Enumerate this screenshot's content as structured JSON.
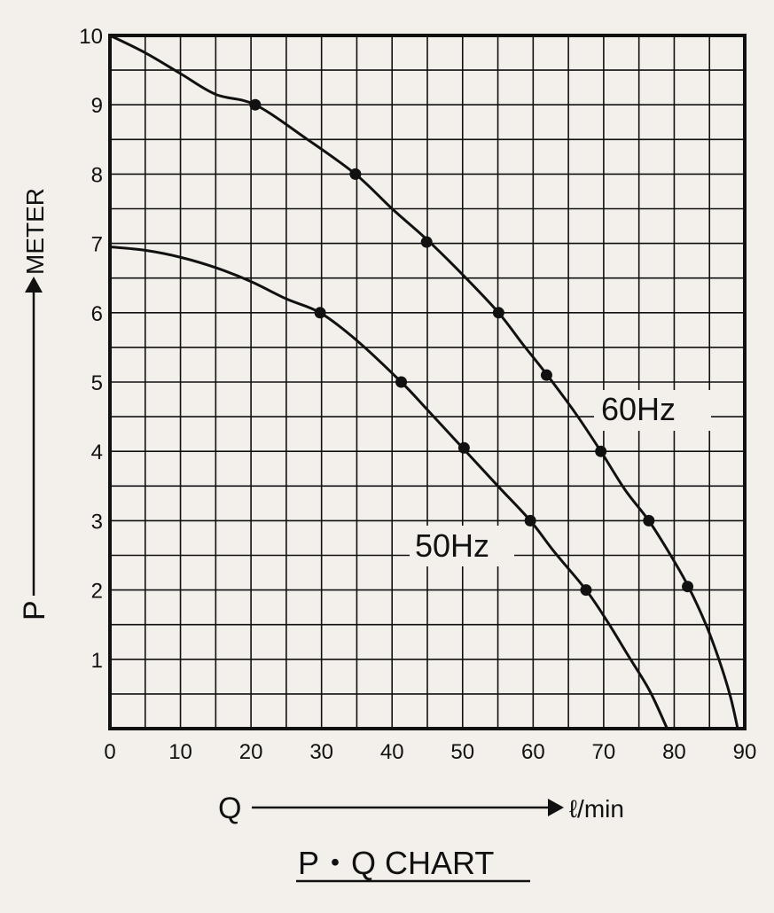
{
  "chart_data": {
    "type": "line",
    "title": "P・Q  CHART",
    "xlabel": "Q",
    "x_unit": "ℓ/min",
    "ylabel": "P",
    "y_unit": "METER",
    "xlim": [
      0,
      90
    ],
    "ylim": [
      0,
      10
    ],
    "x_ticks": [
      "0",
      "10",
      "20",
      "30",
      "40",
      "50",
      "60",
      "70",
      "80",
      "90"
    ],
    "y_ticks": [
      "1",
      "2",
      "3",
      "4",
      "5",
      "6",
      "7",
      "8",
      "9",
      "10"
    ],
    "grid": true,
    "series": [
      {
        "name": "60Hz",
        "curve": [
          [
            0,
            10
          ],
          [
            5,
            9.75
          ],
          [
            10,
            9.45
          ],
          [
            15,
            9.15
          ],
          [
            20.6,
            9.0
          ],
          [
            28,
            8.5
          ],
          [
            34.8,
            8.0
          ],
          [
            40,
            7.5
          ],
          [
            45,
            7.05
          ],
          [
            50,
            6.55
          ],
          [
            55.1,
            6.0
          ],
          [
            58.5,
            5.55
          ],
          [
            62,
            5.1
          ],
          [
            66,
            4.55
          ],
          [
            69.6,
            4.0
          ],
          [
            73,
            3.45
          ],
          [
            76.4,
            3.0
          ],
          [
            79.5,
            2.5
          ],
          [
            82,
            2.05
          ],
          [
            84.5,
            1.5
          ],
          [
            86.5,
            0.95
          ],
          [
            88,
            0.45
          ],
          [
            89,
            0
          ]
        ],
        "points": [
          [
            20.6,
            9.0
          ],
          [
            34.8,
            8.0
          ],
          [
            44.9,
            7.02
          ],
          [
            55.1,
            6.0
          ],
          [
            61.9,
            5.1
          ],
          [
            69.6,
            4.0
          ],
          [
            76.4,
            3.0
          ],
          [
            81.9,
            2.05
          ]
        ]
      },
      {
        "name": "50Hz",
        "curve": [
          [
            0,
            6.95
          ],
          [
            5,
            6.9
          ],
          [
            10,
            6.8
          ],
          [
            15,
            6.65
          ],
          [
            20,
            6.45
          ],
          [
            25,
            6.2
          ],
          [
            29.8,
            6.0
          ],
          [
            35,
            5.6
          ],
          [
            41.3,
            5.0
          ],
          [
            45,
            4.6
          ],
          [
            50,
            4.05
          ],
          [
            55,
            3.5
          ],
          [
            59.6,
            3.0
          ],
          [
            63,
            2.55
          ],
          [
            67.5,
            2.0
          ],
          [
            70.5,
            1.55
          ],
          [
            73.5,
            1.05
          ],
          [
            76.5,
            0.55
          ],
          [
            79,
            0
          ]
        ],
        "points": [
          [
            29.8,
            6.0
          ],
          [
            41.3,
            5.0
          ],
          [
            50.2,
            4.05
          ],
          [
            59.6,
            3.0
          ],
          [
            67.5,
            2.0
          ]
        ]
      }
    ]
  }
}
